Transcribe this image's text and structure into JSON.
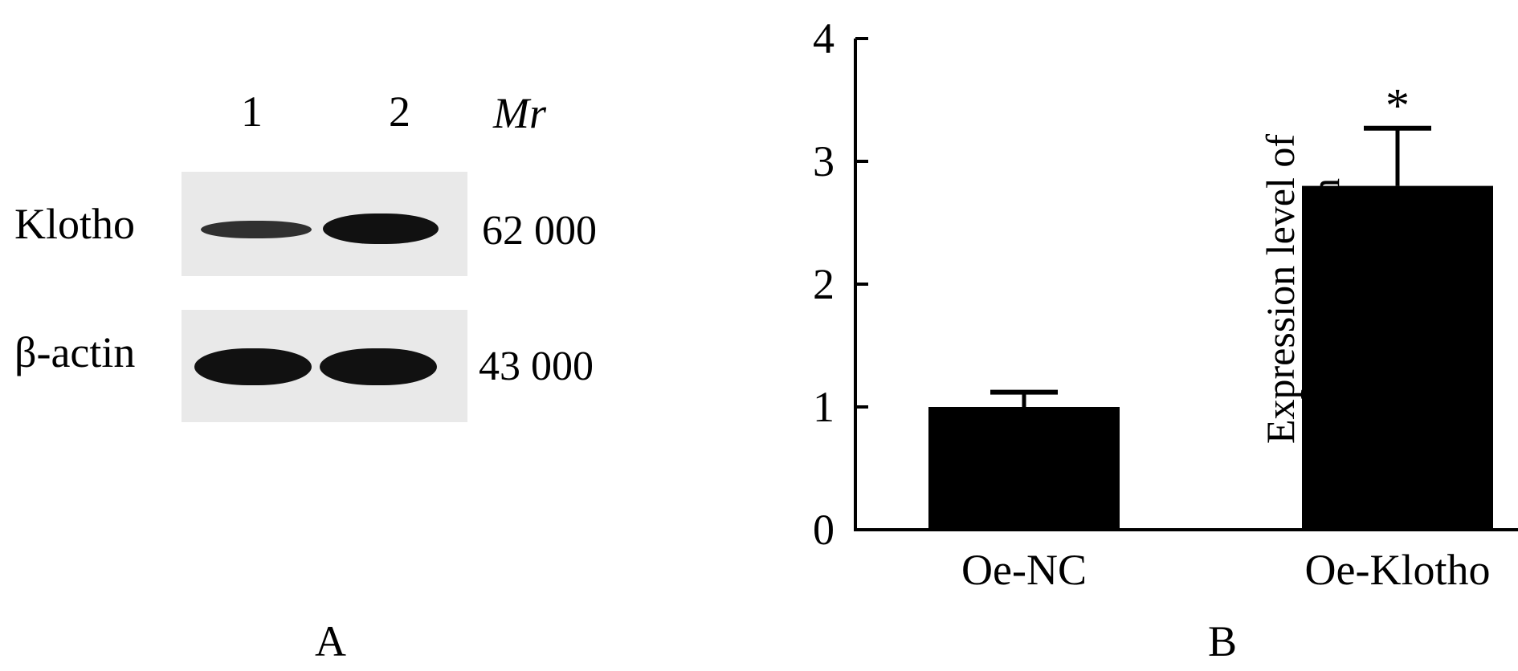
{
  "figure": {
    "panel_a_letter": "A",
    "panel_b_letter": "B"
  },
  "blot": {
    "lane_labels": [
      "1",
      "2"
    ],
    "mr_label": "Mr",
    "rows": [
      {
        "label": "Klotho",
        "mw": "62  000",
        "intensities": [
          0.55,
          1.0
        ]
      },
      {
        "label": "β-actin",
        "mw": "43  000",
        "intensities": [
          1.0,
          1.0
        ]
      }
    ]
  },
  "chart_data": {
    "type": "bar",
    "categories": [
      "Oe-NC",
      "Oe-Klotho"
    ],
    "values": [
      1.0,
      2.8
    ],
    "errors": [
      0.12,
      0.47
    ],
    "significance": [
      "",
      "*"
    ],
    "ylabel": "Expression level of eNOS protein",
    "ylabel_lines": [
      "Expression level of",
      "eNOS protein"
    ],
    "ylim": [
      0,
      4
    ],
    "yticks": [
      0,
      1,
      2,
      3,
      4
    ],
    "grid": false,
    "legend": "none",
    "bar_color": "#000000"
  }
}
